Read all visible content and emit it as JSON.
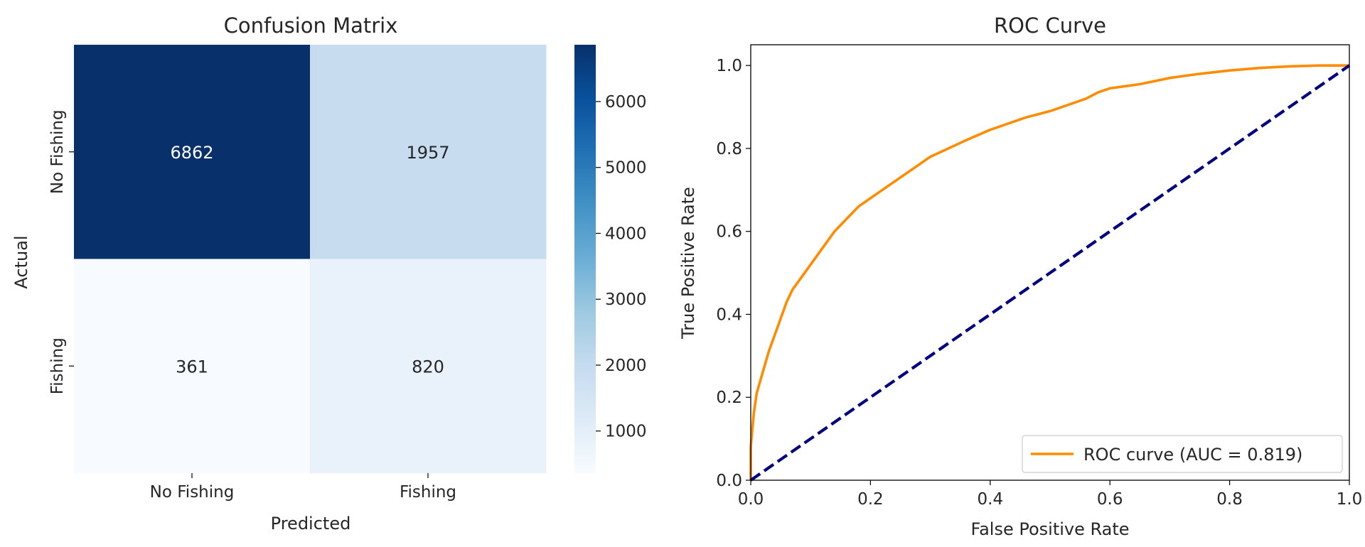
{
  "chart_data": [
    {
      "type": "heatmap",
      "title": "Confusion Matrix",
      "xlabel": "Predicted",
      "ylabel": "Actual",
      "x_categories": [
        "No Fishing",
        "Fishing"
      ],
      "y_categories": [
        "No Fishing",
        "Fishing"
      ],
      "values": [
        [
          6862,
          1957
        ],
        [
          361,
          820
        ]
      ],
      "colormap": "Blues",
      "colorbar": {
        "min": 361,
        "max": 6862,
        "ticks": [
          1000,
          2000,
          3000,
          4000,
          5000,
          6000
        ]
      }
    },
    {
      "type": "line",
      "title": "ROC Curve",
      "xlabel": "False Positive Rate",
      "ylabel": "True Positive Rate",
      "xlim": [
        0.0,
        1.0
      ],
      "ylim": [
        0.0,
        1.05
      ],
      "xticks": [
        0.0,
        0.2,
        0.4,
        0.6,
        0.8,
        1.0
      ],
      "yticks": [
        0.0,
        0.2,
        0.4,
        0.6,
        0.8,
        1.0
      ],
      "grid": false,
      "legend_position": "lower-right",
      "series": [
        {
          "name": "ROC curve (AUC = 0.819)",
          "color": "#ff8c00",
          "style": "solid",
          "x": [
            0.0,
            0.0,
            0.005,
            0.01,
            0.02,
            0.03,
            0.04,
            0.05,
            0.06,
            0.07,
            0.08,
            0.1,
            0.12,
            0.14,
            0.16,
            0.18,
            0.2,
            0.22,
            0.25,
            0.28,
            0.3,
            0.33,
            0.36,
            0.4,
            0.43,
            0.46,
            0.5,
            0.53,
            0.56,
            0.58,
            0.6,
            0.65,
            0.7,
            0.75,
            0.8,
            0.85,
            0.9,
            0.95,
            1.0
          ],
          "y": [
            0.0,
            0.08,
            0.16,
            0.21,
            0.26,
            0.31,
            0.35,
            0.39,
            0.43,
            0.46,
            0.48,
            0.52,
            0.56,
            0.6,
            0.63,
            0.66,
            0.68,
            0.7,
            0.73,
            0.76,
            0.78,
            0.8,
            0.82,
            0.845,
            0.86,
            0.875,
            0.89,
            0.905,
            0.92,
            0.935,
            0.945,
            0.955,
            0.97,
            0.98,
            0.988,
            0.994,
            0.998,
            1.0,
            1.0
          ]
        },
        {
          "name": "",
          "color": "#000080",
          "style": "dashed",
          "x": [
            0.0,
            1.0
          ],
          "y": [
            0.0,
            1.0
          ]
        }
      ]
    }
  ]
}
